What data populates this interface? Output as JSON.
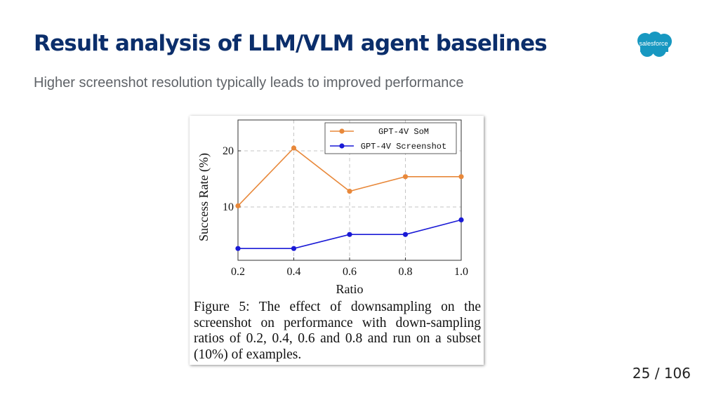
{
  "slide": {
    "title": "Result analysis of LLM/VLM agent baselines",
    "subtitle": "Higher screenshot resolution typically leads to improved performance",
    "logo_text": "salesforce",
    "page_number": "25 / 106"
  },
  "colors": {
    "title": "#0b2e6b",
    "logo": "#1798c1",
    "som": "#e8883a",
    "screenshot": "#1a1ad6"
  },
  "chart_data": {
    "type": "line",
    "x": [
      0.2,
      0.4,
      0.6,
      0.8,
      1.0
    ],
    "x_tick_labels": [
      "0.2",
      "0.4",
      "0.6",
      "0.8",
      "1.0"
    ],
    "y_ticks": [
      10,
      20
    ],
    "y_tick_labels": [
      "10",
      "20"
    ],
    "xlabel": "Ratio",
    "ylabel": "Success Rate (%)",
    "xlim": [
      0.2,
      1.0
    ],
    "ylim": [
      0.5,
      25.5
    ],
    "grid": true,
    "legend_position": "top-right",
    "series": [
      {
        "name": "GPT-4V SoM",
        "color": "#e8883a",
        "values": [
          10.2,
          20.5,
          12.8,
          15.4,
          15.4
        ]
      },
      {
        "name": "GPT-4V Screenshot",
        "color": "#1a1ad6",
        "values": [
          2.6,
          2.6,
          5.1,
          5.1,
          7.7
        ]
      }
    ],
    "caption": "Figure 5:  The effect of downsampling on the screenshot on performance with down-sampling ratios of 0.2, 0.4, 0.6 and 0.8 and run on a subset (10%) of examples."
  }
}
